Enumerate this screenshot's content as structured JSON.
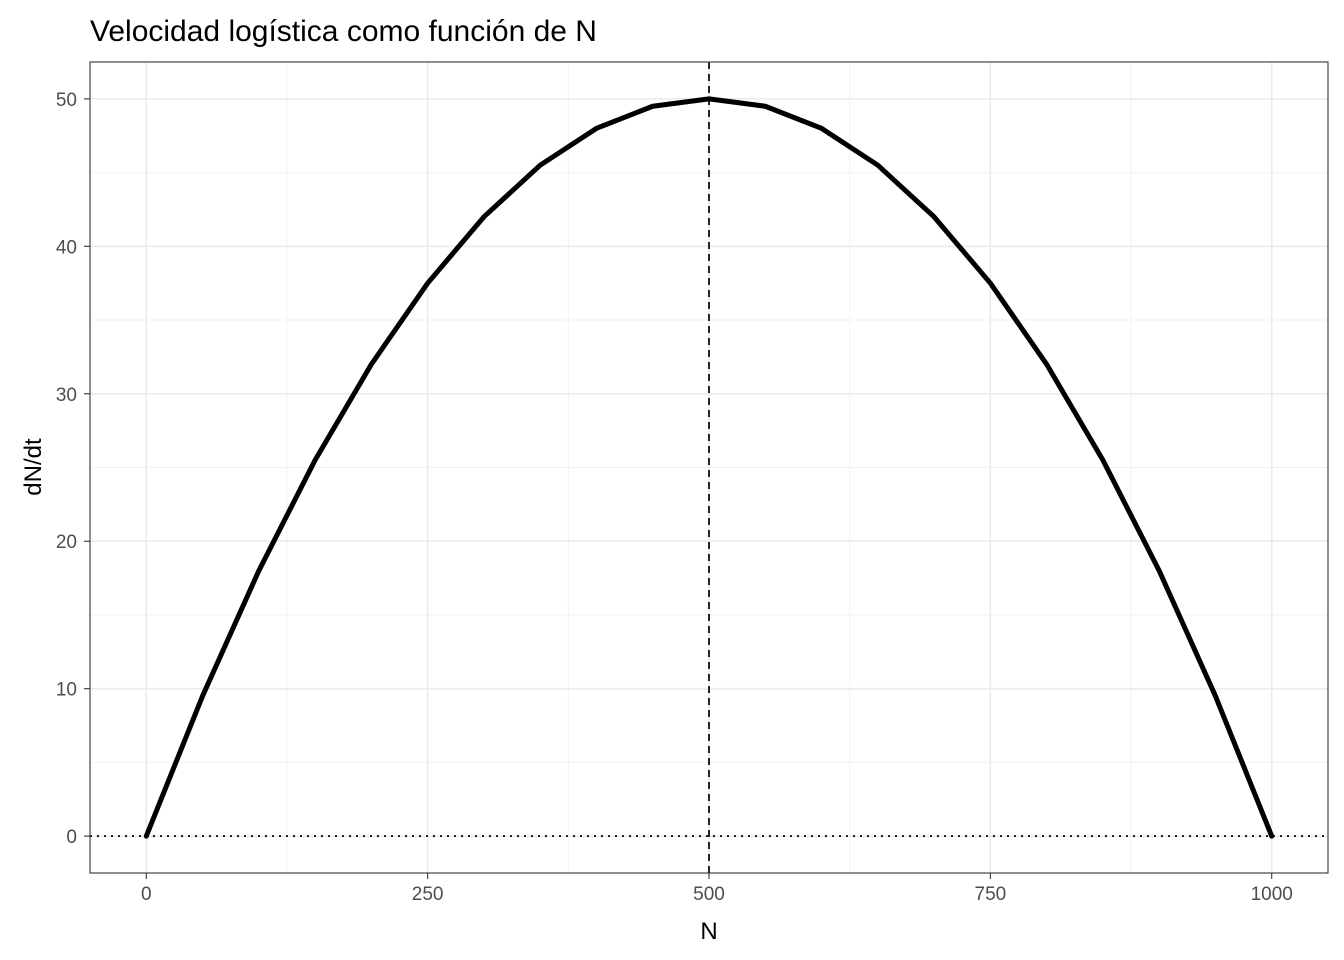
{
  "chart_data": {
    "type": "line",
    "title": "Velocidad logística como función de N",
    "xlabel": "N",
    "ylabel": "dN/dt",
    "xlim": [
      -50,
      1050
    ],
    "ylim": [
      -2.5,
      52.5
    ],
    "x_ticks": [
      0,
      250,
      500,
      750,
      1000
    ],
    "x_tick_labels": [
      "0",
      "250",
      "500",
      "750",
      "1000"
    ],
    "y_ticks": [
      0,
      10,
      20,
      30,
      40,
      50
    ],
    "y_tick_labels": [
      "0",
      "10",
      "20",
      "30",
      "40",
      "50"
    ],
    "grid": true,
    "series": [
      {
        "style": "solid-thick",
        "color": "#000000",
        "x": [
          0,
          50,
          100,
          150,
          200,
          250,
          300,
          350,
          400,
          450,
          500,
          550,
          600,
          650,
          700,
          750,
          800,
          850,
          900,
          950,
          1000
        ],
        "y": [
          0,
          9.5,
          18,
          25.5,
          32,
          37.5,
          42,
          45.5,
          48,
          49.5,
          50,
          49.5,
          48,
          45.5,
          42,
          37.5,
          32,
          25.5,
          18,
          9.5,
          0
        ]
      }
    ],
    "reference_lines": [
      {
        "orientation": "vertical",
        "value": 500,
        "style": "dashed",
        "color": "#000000"
      },
      {
        "orientation": "horizontal",
        "value": 0,
        "style": "dotted",
        "color": "#000000"
      }
    ]
  }
}
